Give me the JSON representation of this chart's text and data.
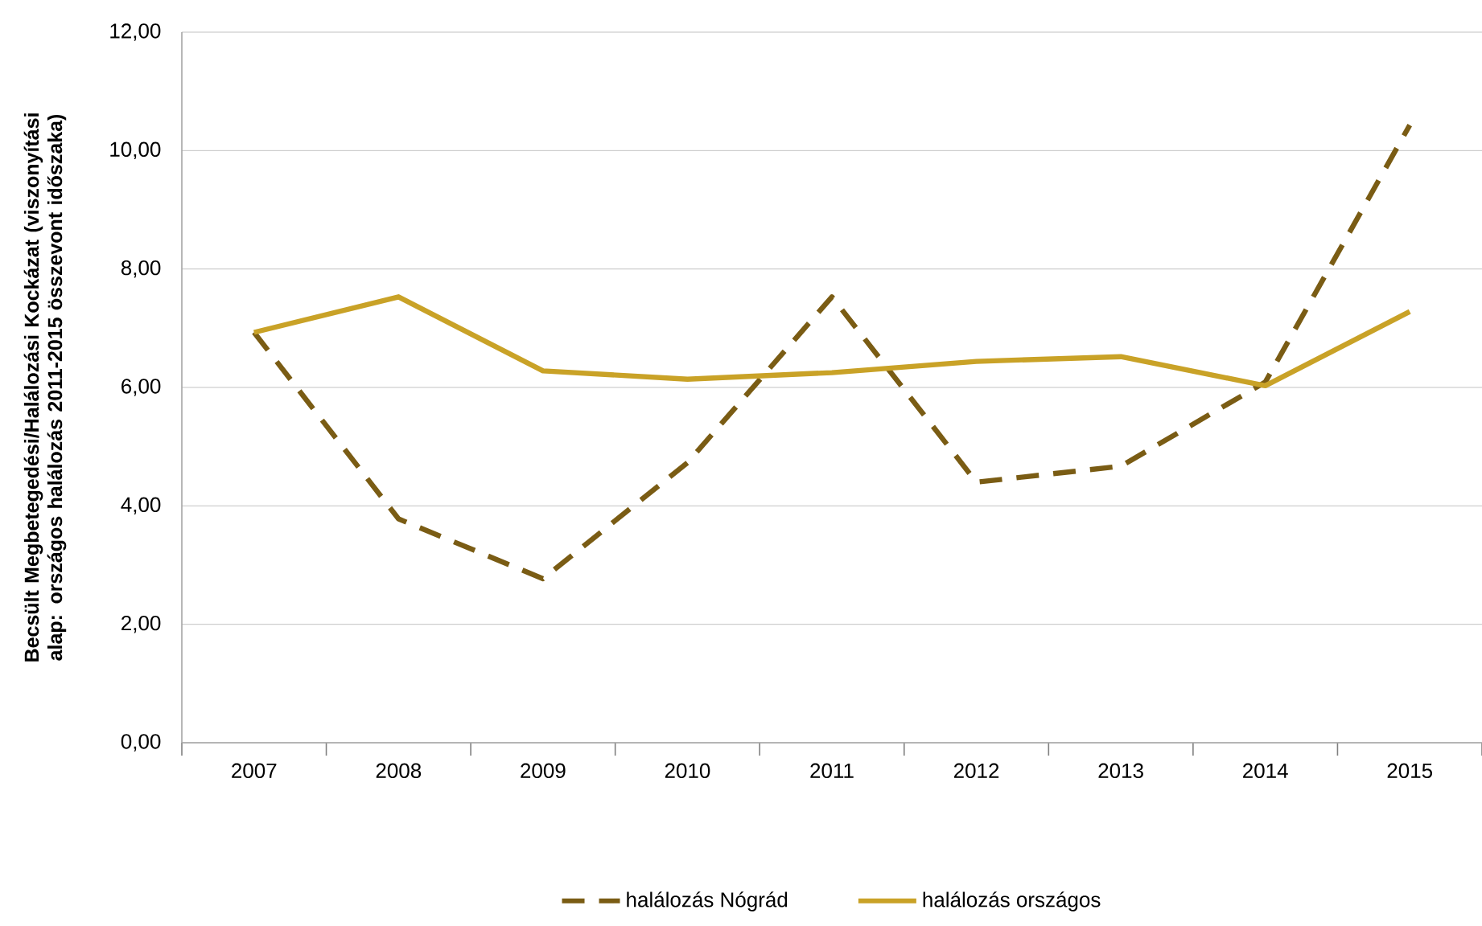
{
  "chart_data": {
    "type": "line",
    "ylabel": "Becsült Megbetegedési/Halálozási Kockázat (viszonyítási alap: országos halálozás 2011-2015  összevont időszaka)",
    "categories": [
      "2007",
      "2008",
      "2009",
      "2010",
      "2011",
      "2012",
      "2013",
      "2014",
      "2015"
    ],
    "series": [
      {
        "name": "halálozás Nógrád",
        "color": "#7a5c14",
        "line_style": "dashed",
        "values": [
          6.93,
          3.78,
          2.77,
          4.73,
          7.53,
          4.4,
          4.67,
          6.09,
          10.43
        ]
      },
      {
        "name": "halálozás országos",
        "color": "#c9a227",
        "line_style": "solid",
        "values": [
          6.93,
          7.53,
          6.28,
          6.14,
          6.25,
          6.44,
          6.52,
          6.03,
          7.28
        ]
      }
    ],
    "ylim": [
      0,
      12
    ],
    "yticks": [
      {
        "value": 0,
        "label": "0,00"
      },
      {
        "value": 2,
        "label": "2,00"
      },
      {
        "value": 4,
        "label": "4,00"
      },
      {
        "value": 6,
        "label": "6,00"
      },
      {
        "value": 8,
        "label": "8,00"
      },
      {
        "value": 10,
        "label": "10,00"
      },
      {
        "value": 12,
        "label": "12,00"
      }
    ],
    "grid": "y",
    "legend": "bottom",
    "marker": "none"
  }
}
